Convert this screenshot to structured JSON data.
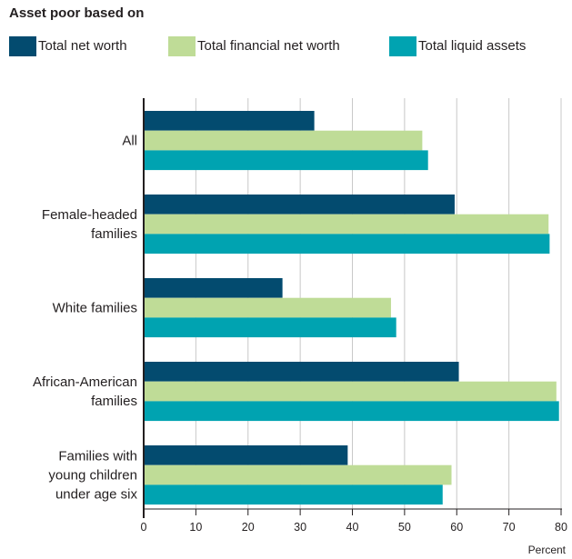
{
  "legend": {
    "title": "Asset poor based on",
    "items": [
      {
        "label": "Total net worth",
        "color": "#034b6f"
      },
      {
        "label": "Total financial net worth",
        "color": "#bfdc97"
      },
      {
        "label": "Total liquid assets",
        "color": "#00a3b1"
      }
    ]
  },
  "chart_data": {
    "type": "bar",
    "orientation": "horizontal",
    "title": "Asset poor based on",
    "categories": [
      [
        "All"
      ],
      [
        "Female-headed",
        "families"
      ],
      [
        "White families"
      ],
      [
        "African-American",
        "families"
      ],
      [
        "Families with",
        "young children",
        "under age six"
      ]
    ],
    "series": [
      {
        "name": "Total net worth",
        "color": "#034b6f",
        "values": [
          32.7,
          59.6,
          26.6,
          60.4,
          39.1
        ]
      },
      {
        "name": "Total financial net worth",
        "color": "#bfdc97",
        "values": [
          53.4,
          77.6,
          47.4,
          79.1,
          59.0
        ]
      },
      {
        "name": "Total liquid assets",
        "color": "#00a3b1",
        "values": [
          54.5,
          77.8,
          48.4,
          79.6,
          57.3
        ]
      }
    ],
    "xlim": [
      0,
      80
    ],
    "xticks": [
      0,
      10,
      20,
      30,
      40,
      50,
      60,
      70,
      80
    ],
    "xlabel": "Percent",
    "grid": "vertical",
    "legend_position": "top"
  }
}
